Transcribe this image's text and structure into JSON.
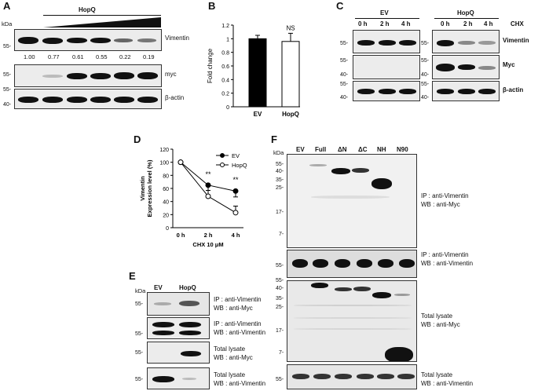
{
  "panels": {
    "A": "A",
    "B": "B",
    "C": "C",
    "D": "D",
    "E": "E",
    "F": "F"
  },
  "a": {
    "kda": "kDa",
    "group": "HopQ",
    "blots": [
      {
        "label": "Vimentin",
        "markers": [
          "55-"
        ]
      },
      {
        "label": "myc",
        "markers": [
          "55-"
        ]
      },
      {
        "label": "β-actin",
        "markers": [
          "55-",
          "40-"
        ]
      }
    ],
    "ratios": [
      "1.00",
      "0.77",
      "0.61",
      "0.55",
      "0.22",
      "0.19"
    ]
  },
  "c": {
    "groups": [
      "EV",
      "HopQ"
    ],
    "treatment": "CHX",
    "timepoints": [
      "0 h",
      "2 h",
      "4 h"
    ],
    "blots": [
      {
        "label": "Vimentin",
        "markers": [
          "55-"
        ]
      },
      {
        "label": "Myc",
        "markers": [
          "55-",
          "40-"
        ]
      },
      {
        "label": "β-actin",
        "markers": [
          "55-",
          "40-"
        ]
      }
    ]
  },
  "e": {
    "kda": "kDa",
    "lanes": [
      "EV",
      "HopQ"
    ],
    "blots": [
      {
        "ip": "IP : anti-Vimentin",
        "wb": "WB : anti-Myc",
        "markers": [
          "55-"
        ]
      },
      {
        "ip": "IP : anti-Vimentin",
        "wb": "WB : anti-Vimentin",
        "markers": [
          "55-"
        ]
      },
      {
        "ip": "Total  lysate",
        "wb": "WB : anti-Myc",
        "markers": [
          "55-"
        ]
      },
      {
        "ip": "Total  lysate",
        "wb": "WB : anti-Vimentin",
        "markers": [
          "55-"
        ]
      }
    ]
  },
  "f": {
    "kda": "kDa",
    "lanes": [
      "EV",
      "Full",
      "ΔN",
      "ΔC",
      "NH",
      "N90"
    ],
    "blots": [
      {
        "ip": "IP : anti-Vimentin",
        "wb": "WB : anti-Myc",
        "markers": [
          "55-",
          "40-",
          "35-",
          "25-",
          "17-",
          "7-"
        ]
      },
      {
        "ip": "IP : anti-Vimentin",
        "wb": "WB : anti-Vimentin",
        "markers": [
          "55-"
        ]
      },
      {
        "ip": "Total  lysate",
        "wb": "WB : anti-Myc",
        "markers": [
          "55-",
          "40-",
          "35-",
          "25-",
          "17-",
          "7-"
        ]
      },
      {
        "ip": "Total  lysate",
        "wb": "WB : anti-Vimentin",
        "markers": [
          "55-"
        ]
      }
    ]
  },
  "chart_data": [
    {
      "type": "bar",
      "panel": "B",
      "categories": [
        "EV",
        "HopQ"
      ],
      "values": [
        1.0,
        0.96
      ],
      "errors": [
        0.05,
        0.12
      ],
      "colors": [
        "#000000",
        "#ffffff"
      ],
      "ylabel": "Fold change",
      "yticks": [
        "0",
        "0.2",
        "0.4",
        "0.6",
        "0.8",
        "1",
        "1.2"
      ],
      "ylim": [
        0,
        1.2
      ],
      "annotation": "NS"
    },
    {
      "type": "line",
      "panel": "D",
      "categories": [
        "0 h",
        "2 h",
        "4 h"
      ],
      "series": [
        {
          "name": "EV",
          "values": [
            100,
            65,
            56
          ],
          "errors": [
            0,
            8,
            9
          ],
          "marker": "filled"
        },
        {
          "name": "HopQ",
          "values": [
            100,
            48,
            23
          ],
          "errors": [
            0,
            17,
            10
          ],
          "marker": "open"
        }
      ],
      "ylabel": "Vimentin\nExpression level (%)",
      "xlabel": "CHX 10 μM",
      "yticks": [
        "0",
        "20",
        "40",
        "60",
        "80",
        "100",
        "120"
      ],
      "ylim": [
        0,
        120
      ],
      "annotations": [
        "**",
        "**"
      ],
      "legend": "top-right"
    }
  ]
}
